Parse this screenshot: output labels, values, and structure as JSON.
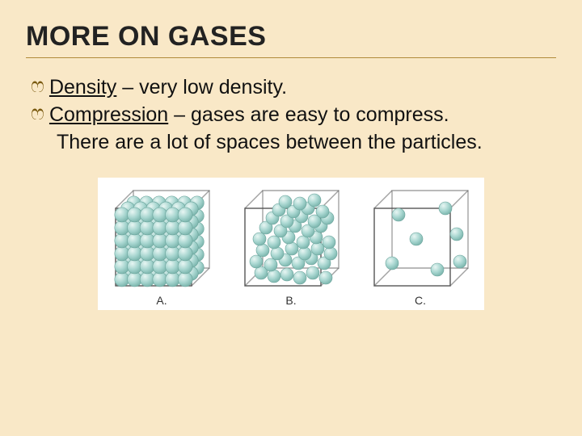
{
  "title": "MORE ON GASES",
  "bullet_glyph": "་",
  "bullets": [
    {
      "term": "Density",
      "rest": " – very low density."
    },
    {
      "term": "Compression",
      "rest": " – gases are easy to compress."
    }
  ],
  "continuation": "There are a lot of spaces between the particles.",
  "figure": {
    "background_color": "#ffffff",
    "cube_size": 130,
    "cube_stroke": "#555555",
    "cube_fill": "#fdfdfd",
    "particle_fill": "#a6d5cf",
    "particle_stroke": "#6aa39b",
    "panels": [
      {
        "label": "A.",
        "type": "solid",
        "grid_n": 6,
        "particle_radius": 9
      },
      {
        "label": "B.",
        "type": "liquid",
        "particle_radius": 8,
        "particles": [
          [
            28,
            108
          ],
          [
            44,
            112
          ],
          [
            60,
            110
          ],
          [
            76,
            114
          ],
          [
            92,
            108
          ],
          [
            108,
            114
          ],
          [
            22,
            94
          ],
          [
            40,
            98
          ],
          [
            58,
            92
          ],
          [
            74,
            96
          ],
          [
            90,
            90
          ],
          [
            106,
            96
          ],
          [
            30,
            80
          ],
          [
            48,
            84
          ],
          [
            66,
            78
          ],
          [
            82,
            84
          ],
          [
            98,
            78
          ],
          [
            114,
            84
          ],
          [
            26,
            66
          ],
          [
            44,
            70
          ],
          [
            62,
            64
          ],
          [
            80,
            70
          ],
          [
            96,
            64
          ],
          [
            112,
            70
          ],
          [
            34,
            52
          ],
          [
            52,
            56
          ],
          [
            70,
            50
          ],
          [
            86,
            56
          ],
          [
            102,
            50
          ],
          [
            42,
            40
          ],
          [
            60,
            44
          ],
          [
            78,
            38
          ],
          [
            94,
            44
          ],
          [
            110,
            40
          ],
          [
            50,
            30
          ],
          [
            68,
            32
          ],
          [
            86,
            28
          ],
          [
            104,
            32
          ],
          [
            58,
            20
          ],
          [
            76,
            22
          ],
          [
            94,
            18
          ]
        ]
      },
      {
        "label": "C.",
        "type": "gas",
        "particle_radius": 8,
        "particles": [
          [
            38,
            36
          ],
          [
            96,
            28
          ],
          [
            60,
            66
          ],
          [
            110,
            60
          ],
          [
            30,
            96
          ],
          [
            86,
            104
          ],
          [
            114,
            94
          ]
        ]
      }
    ]
  },
  "colors": {
    "slide_bg": "#f9e8c7",
    "title_rule": "#b08a3a",
    "bullet_icon": "#7a5a10",
    "text": "#111111"
  }
}
